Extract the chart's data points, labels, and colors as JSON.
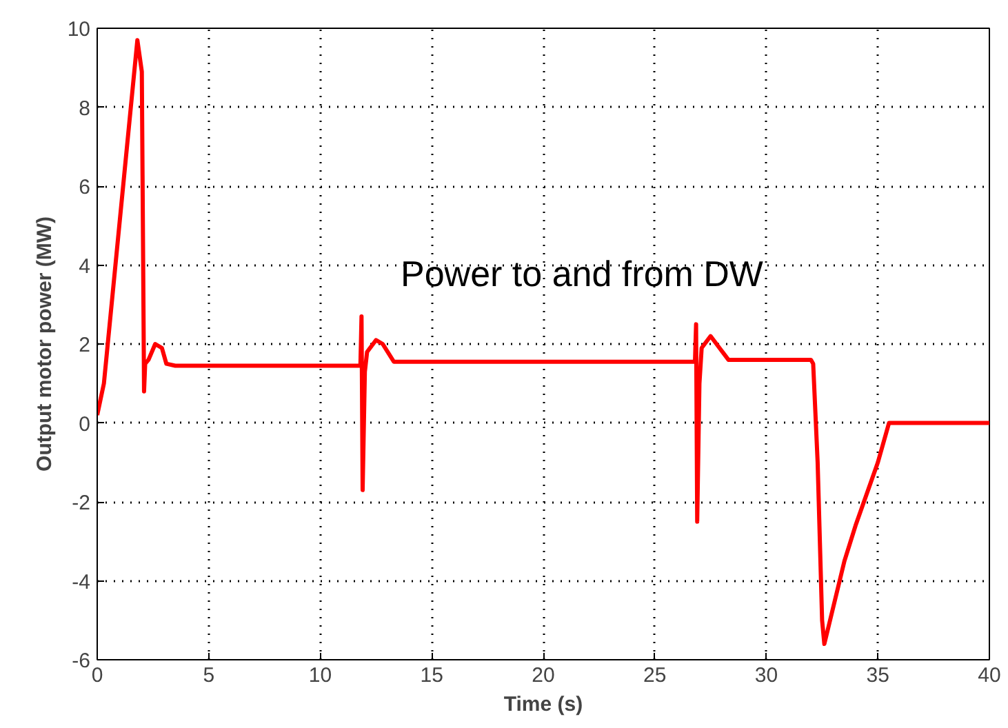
{
  "chart_data": {
    "type": "line",
    "xlabel": "Time (s)",
    "ylabel": "Output motor power (MW)",
    "annotations": [
      "Power to and from DW"
    ],
    "series": [
      {
        "color": "#ff0000",
        "x": [
          0,
          0.3,
          1.8,
          2.0,
          2.1,
          2.15,
          2.3,
          2.6,
          2.9,
          3.1,
          3.5,
          11.8,
          11.85,
          11.9,
          12.0,
          12.1,
          12.5,
          12.8,
          13.3,
          26.8,
          26.85,
          26.9,
          27.0,
          27.1,
          27.5,
          27.9,
          28.3,
          32.0,
          32.1,
          32.3,
          32.5,
          32.6,
          33.5,
          34.0,
          35.0,
          35.5,
          40
        ],
        "values": [
          0.2,
          1,
          9.7,
          8.9,
          0.8,
          1.5,
          1.6,
          2.0,
          1.9,
          1.5,
          1.45,
          1.45,
          2.7,
          -1.7,
          1.3,
          1.8,
          2.1,
          2.0,
          1.55,
          1.55,
          2.5,
          -2.5,
          1.0,
          1.9,
          2.2,
          1.9,
          1.6,
          1.6,
          1.5,
          -1.0,
          -5.0,
          -5.6,
          -3.5,
          -2.6,
          -1.0,
          0.0,
          0.0
        ]
      }
    ],
    "xlim": [
      0,
      40
    ],
    "ylim": [
      -6,
      10
    ],
    "xticks": [
      0,
      5,
      10,
      15,
      20,
      25,
      30,
      35,
      40
    ],
    "yticks": [
      -6,
      -4,
      -2,
      0,
      2,
      4,
      6,
      8,
      10
    ],
    "grid": true,
    "line_style": "solid",
    "marker": "none"
  }
}
